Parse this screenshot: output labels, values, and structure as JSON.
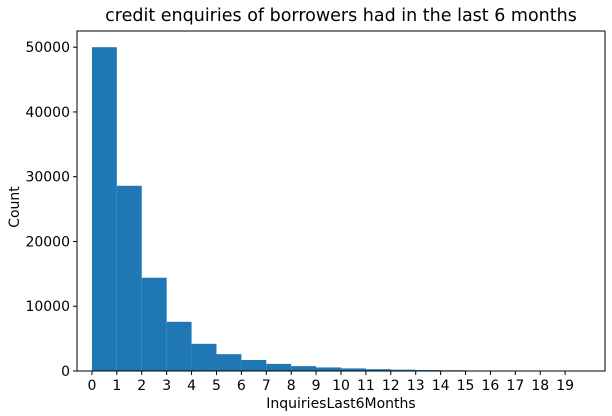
{
  "chart_data": {
    "type": "bar",
    "title": "credit enquiries of borrowers had in the last 6 months",
    "xlabel": "InquiriesLast6Months",
    "ylabel": "Count",
    "bar_color": "#1f77b4",
    "bin_edges": [
      0,
      1,
      2,
      3,
      4,
      5,
      6,
      7,
      8,
      9,
      10,
      11,
      12,
      13,
      14,
      15,
      16,
      17,
      18,
      19,
      20
    ],
    "values": [
      50000,
      28600,
      14400,
      7600,
      4200,
      2600,
      1700,
      1100,
      750,
      550,
      400,
      280,
      200,
      150,
      110,
      80,
      60,
      45,
      35,
      25
    ],
    "xticks": [
      0,
      1,
      2,
      3,
      4,
      5,
      6,
      7,
      8,
      9,
      10,
      11,
      12,
      13,
      14,
      15,
      16,
      17,
      18,
      19
    ],
    "yticks": [
      0,
      10000,
      20000,
      30000,
      40000,
      50000
    ],
    "xlim": [
      -0.6,
      20.6
    ],
    "ylim": [
      0,
      52500
    ],
    "grid": false,
    "legend": "none"
  }
}
